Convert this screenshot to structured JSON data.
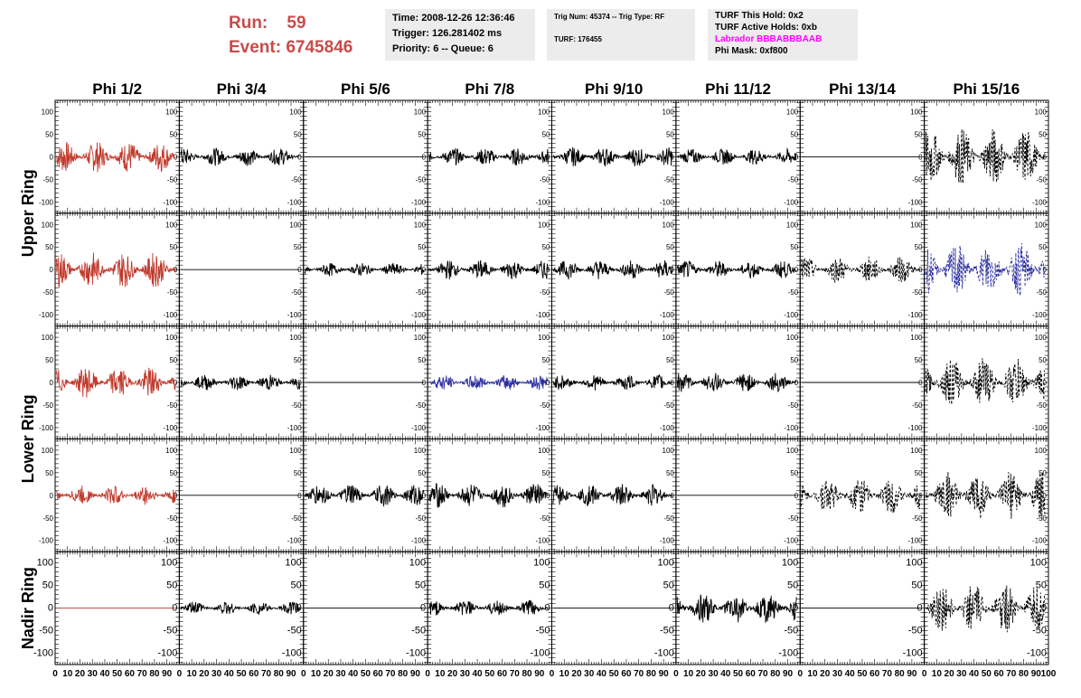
{
  "header": {
    "run_label": "Run:",
    "run_value": "59",
    "event_label": "Event:",
    "event_value": "6745846",
    "time_line": "Time: 2008-12-26 12:36:46",
    "trigger_line": "Trigger: 126.281402 ms",
    "priority_line": "Priority: 6 -- Queue: 6",
    "trig_line": "Trig Num: 45374 -- Trig Type: RF",
    "turf_line": "TURF: 176455",
    "turf_hold_line": "TURF This Hold: 0x2",
    "turf_active_line": "TURF Active Holds: 0xb",
    "labrador_line": "Labrador BBBABBBAAB",
    "phimask_line": "Phi Mask: 0xf800"
  },
  "colors": {
    "header_red": "#c84b4b",
    "trace_black": "#000000",
    "trace_red": "#c0392b",
    "trace_blue": "#2b2fa0",
    "labrador_magenta": "#ff00ff"
  },
  "chart_data": {
    "type": "line",
    "columns": [
      "Phi 1/2",
      "Phi 3/4",
      "Phi 5/6",
      "Phi 7/8",
      "Phi 9/10",
      "Phi 11/12",
      "Phi 13/14",
      "Phi 15/16"
    ],
    "rows": [
      "Upper Ring",
      "Upper Ring",
      "Lower Ring",
      "Lower Ring",
      "Nadir Ring"
    ],
    "row_labels": [
      "Upper Ring",
      "Lower Ring",
      "Nadir Ring"
    ],
    "xlim": [
      0,
      100
    ],
    "ylim": [
      -125,
      125
    ],
    "x_tick_labels": [
      "0",
      "10",
      "20",
      "30",
      "40",
      "50",
      "60",
      "70",
      "80",
      "90",
      "100"
    ],
    "y_tick_labels_small": [
      "-100",
      "-50",
      "0",
      "50",
      "100"
    ],
    "y_tick_labels_nadir": [
      "-100",
      "-50",
      "0",
      "50",
      "100"
    ],
    "x_tick_values": [
      0,
      10,
      20,
      30,
      40,
      50,
      60,
      70,
      80,
      90,
      100
    ],
    "y_tick_values": [
      -100,
      -50,
      0,
      50,
      100
    ],
    "panels": [
      [
        {
          "style": "red",
          "amp": 35,
          "dashed": false
        },
        {
          "style": "black",
          "amp": 20,
          "dashed": false
        },
        {
          "style": "black",
          "amp": 0,
          "dashed": false
        },
        {
          "style": "black",
          "amp": 20,
          "dashed": false
        },
        {
          "style": "black",
          "amp": 22,
          "dashed": false
        },
        {
          "style": "black",
          "amp": 18,
          "dashed": false
        },
        {
          "style": "black",
          "amp": 0,
          "dashed": false
        },
        {
          "style": "black",
          "amp": 65,
          "dashed": true
        }
      ],
      [
        {
          "style": "red",
          "amp": 40,
          "dashed": false
        },
        {
          "style": "black",
          "amp": 0,
          "dashed": false
        },
        {
          "style": "black",
          "amp": 15,
          "dashed": false
        },
        {
          "style": "black",
          "amp": 22,
          "dashed": false
        },
        {
          "style": "black",
          "amp": 22,
          "dashed": false
        },
        {
          "style": "black",
          "amp": 20,
          "dashed": false
        },
        {
          "style": "black",
          "amp": 30,
          "dashed": true
        },
        {
          "style": "blue",
          "amp": 60,
          "dashed": true
        }
      ],
      [
        {
          "style": "red",
          "amp": 35,
          "dashed": false
        },
        {
          "style": "black",
          "amp": 18,
          "dashed": false
        },
        {
          "style": "black",
          "amp": 0,
          "dashed": false
        },
        {
          "style": "blue",
          "amp": 18,
          "dashed": false
        },
        {
          "style": "black",
          "amp": 18,
          "dashed": false
        },
        {
          "style": "black",
          "amp": 22,
          "dashed": false
        },
        {
          "style": "black",
          "amp": 0,
          "dashed": false
        },
        {
          "style": "black",
          "amp": 55,
          "dashed": true
        }
      ],
      [
        {
          "style": "red",
          "amp": 22,
          "dashed": false
        },
        {
          "style": "black",
          "amp": 0,
          "dashed": false
        },
        {
          "style": "black",
          "amp": 25,
          "dashed": false
        },
        {
          "style": "black",
          "amp": 28,
          "dashed": false
        },
        {
          "style": "black",
          "amp": 25,
          "dashed": false
        },
        {
          "style": "black",
          "amp": 0,
          "dashed": false
        },
        {
          "style": "black",
          "amp": 40,
          "dashed": true
        },
        {
          "style": "black",
          "amp": 55,
          "dashed": true
        }
      ],
      [
        {
          "style": "red",
          "amp": 0,
          "dashed": false
        },
        {
          "style": "black",
          "amp": 15,
          "dashed": false
        },
        {
          "style": "black",
          "amp": 0,
          "dashed": false
        },
        {
          "style": "black",
          "amp": 18,
          "dashed": false
        },
        {
          "style": "black",
          "amp": 0,
          "dashed": false
        },
        {
          "style": "black",
          "amp": 35,
          "dashed": false
        },
        {
          "style": "black",
          "amp": 0,
          "dashed": false
        },
        {
          "style": "black",
          "amp": 55,
          "dashed": true
        }
      ]
    ]
  }
}
